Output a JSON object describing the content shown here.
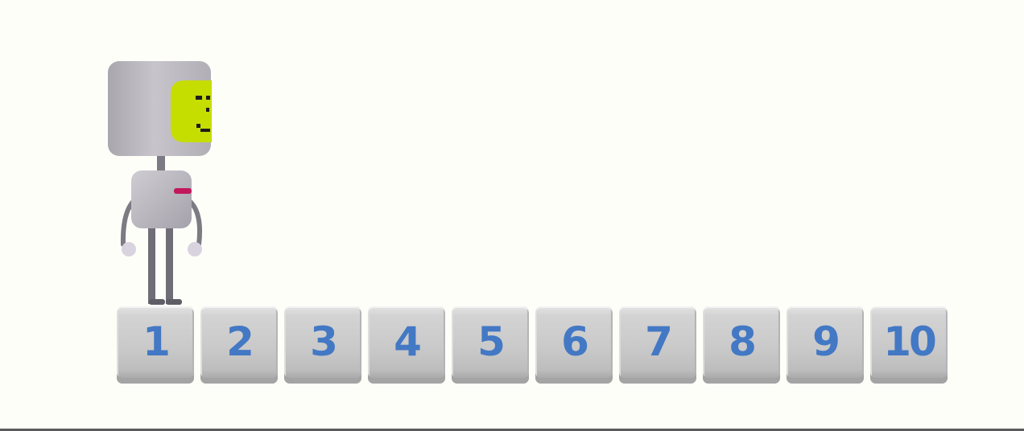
{
  "game": {
    "character": "robot",
    "robot_position": 1,
    "tiles": [
      {
        "label": "1"
      },
      {
        "label": "2"
      },
      {
        "label": "3"
      },
      {
        "label": "4"
      },
      {
        "label": "5"
      },
      {
        "label": "6"
      },
      {
        "label": "7"
      },
      {
        "label": "8"
      },
      {
        "label": "9"
      },
      {
        "label": "10"
      }
    ],
    "colors": {
      "background": "#fefef9",
      "tile_number": "#4378c4",
      "robot_face": "#c6dd00",
      "robot_body": "#b6b4bb",
      "robot_accent": "#c2185b"
    }
  }
}
